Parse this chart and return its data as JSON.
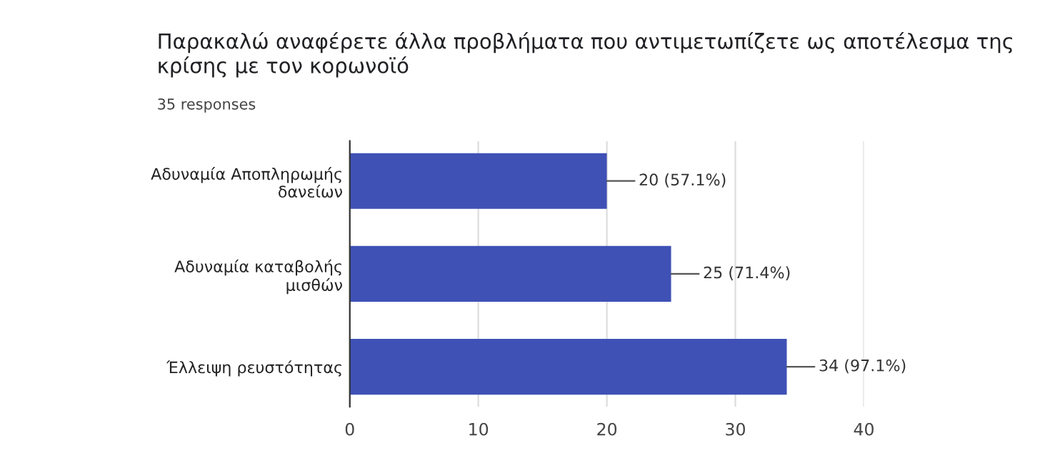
{
  "chart_data": {
    "type": "bar",
    "orientation": "horizontal",
    "title": "Παρακαλώ αναφέρετε άλλα προβλήματα που αντιμετωπίζετε ως αποτέλεσμα της κρίσης με τον κορωνοϊό",
    "subtitle": "35 responses",
    "categories": [
      "Αδυναμία Αποπληρωμής\nδανείων",
      "Αδυναμία καταβολής\nμισθών",
      "Έλλειψη ρευστότητας"
    ],
    "values": [
      20,
      25,
      34
    ],
    "value_labels": [
      "20 (57.1%)",
      "25 (71.4%)",
      "34 (97.1%)"
    ],
    "color": "#3f51b5",
    "xlim": [
      0,
      40
    ],
    "xticks": [
      0,
      10,
      20,
      30,
      40
    ],
    "grid": "x",
    "legend": false
  }
}
